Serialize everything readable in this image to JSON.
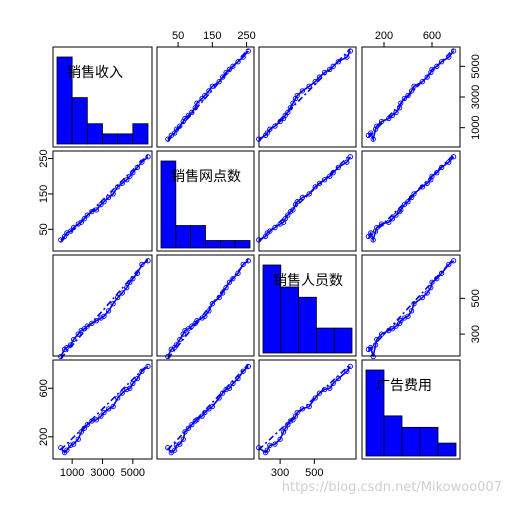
{
  "watermark": "https://blog.csdn.net/Mikowoo007",
  "chart_data": {
    "type": "scatter",
    "variables": [
      "销售收入",
      "销售网点数",
      "销售人员数",
      "广告费用"
    ],
    "ranges": [
      [
        0,
        6000
      ],
      [
        0,
        260
      ],
      [
        200,
        720
      ],
      [
        50,
        800
      ]
    ],
    "ticks": [
      [
        "1000",
        "3000",
        "5000"
      ],
      [
        "50",
        "150",
        "250"
      ],
      [
        "300",
        "500"
      ],
      [
        "200",
        "600"
      ]
    ],
    "histograms": [
      [
        6,
        3.2,
        1.4,
        0.7,
        0.7,
        1.4
      ],
      [
        5.8,
        1.5,
        1.5,
        0.5,
        0.5,
        0.5
      ],
      [
        6,
        4.5,
        3.8,
        1.7,
        1.7
      ],
      [
        6,
        2.8,
        2.0,
        2.0,
        0.9
      ]
    ],
    "series": [
      {
        "values": [
          [
            250,
            20,
            175,
            110
          ],
          [
            500,
            30,
            215,
            70
          ],
          [
            650,
            40,
            225,
            90
          ],
          [
            900,
            45,
            240,
            130
          ],
          [
            1100,
            55,
            270,
            140
          ],
          [
            1400,
            65,
            300,
            180
          ],
          [
            1600,
            70,
            320,
            240
          ],
          [
            1800,
            80,
            330,
            270
          ],
          [
            2000,
            90,
            345,
            300
          ],
          [
            2300,
            100,
            360,
            330
          ],
          [
            2600,
            105,
            375,
            340
          ],
          [
            2900,
            120,
            390,
            370
          ],
          [
            3100,
            128,
            400,
            400
          ],
          [
            3400,
            140,
            430,
            430
          ],
          [
            3700,
            150,
            470,
            450
          ],
          [
            4000,
            170,
            505,
            520
          ],
          [
            4300,
            180,
            530,
            560
          ],
          [
            4600,
            190,
            560,
            590
          ],
          [
            4800,
            200,
            590,
            600
          ],
          [
            5000,
            210,
            610,
            640
          ],
          [
            5300,
            225,
            640,
            680
          ],
          [
            5600,
            240,
            690,
            740
          ],
          [
            6000,
            255,
            710,
            780
          ]
        ]
      }
    ],
    "colors": {
      "points": "#0000ff",
      "fill": "#0000ff",
      "line": "#0000ff",
      "border": "#000000"
    }
  }
}
